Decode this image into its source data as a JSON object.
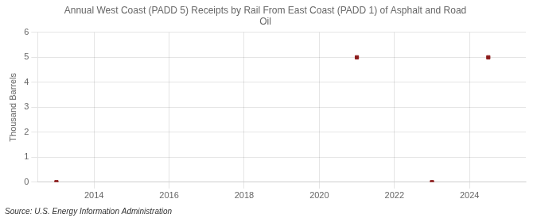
{
  "chart_data": {
    "type": "scatter",
    "title": "Annual West Coast (PADD 5) Receipts by Rail From East Coast (PADD 1) of Asphalt and Road\nOil",
    "ylabel": "Thousand Barrels",
    "annotations": [
      "Source: U.S. Energy Information Administration"
    ],
    "x": [
      2013,
      2021,
      2023,
      2024.5
    ],
    "values": [
      0,
      5,
      0,
      5
    ],
    "color": "#8b1a1a",
    "marker": "square",
    "xlim": [
      2012.5,
      2025.5
    ],
    "ylim": [
      0,
      6
    ],
    "xticks": [
      2014,
      2016,
      2018,
      2020,
      2022,
      2024
    ],
    "yticks": [
      0,
      1,
      2,
      3,
      4,
      5,
      6
    ],
    "grid": true
  }
}
